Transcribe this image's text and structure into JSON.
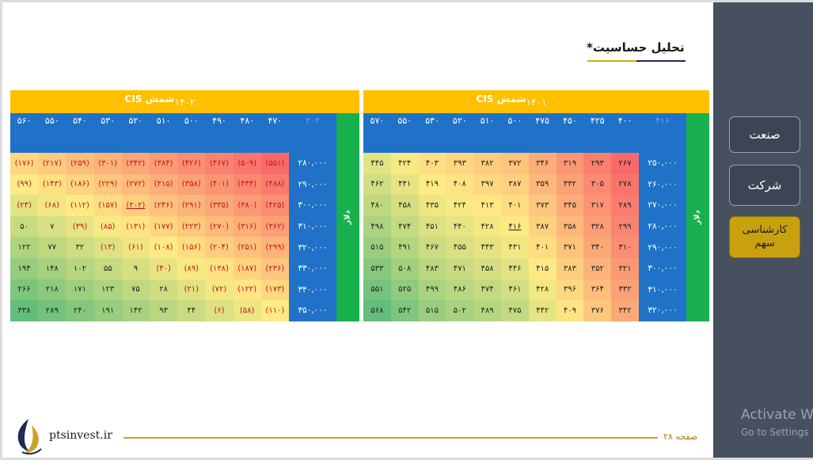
{
  "page": {
    "title": "تحلیل حساسیت*",
    "site": "ptsinvest.ir",
    "page_number": "صفحه ۲۸"
  },
  "nav": {
    "industry": "صنعت",
    "company": "شرکت",
    "analysis_line1": "کارشناسی",
    "analysis_line2": "سهم"
  },
  "watermark": {
    "line1": "Activate W",
    "line2": "Go to Settings"
  },
  "tables": [
    {
      "year": "۱۴۰۲",
      "header": "شمش CIS",
      "side_label": "دلار",
      "corner": "۲۰۲",
      "cols": [
        "۴۷۰",
        "۴۸۰",
        "۴۹۰",
        "۵۰۰",
        "۵۱۰",
        "۵۲۰",
        "۵۳۰",
        "۵۴۰",
        "۵۵۰",
        "۵۶۰"
      ],
      "rows": [
        "۲۸۰,۰۰۰",
        "۲۹۰,۰۰۰",
        "۳۰۰,۰۰۰",
        "۳۱۰,۰۰۰",
        "۳۲۰,۰۰۰",
        "۳۳۰,۰۰۰",
        "۳۴۰,۰۰۰",
        "۳۵۰,۰۰۰"
      ],
      "values": [
        [
          "(۵۵۱)",
          "(۵۰۹)",
          "(۴۶۷)",
          "(۴۲۶)",
          "(۳۸۴)",
          "(۳۴۲)",
          "(۳۰۱)",
          "(۲۵۹)",
          "(۲۱۷)",
          "(۱۷۶)"
        ],
        [
          "(۴۸۸)",
          "(۴۴۴)",
          "(۴۰۱)",
          "(۳۵۸)",
          "(۳۱۵)",
          "(۲۷۲)",
          "(۲۲۹)",
          "(۱۸۶)",
          "(۱۴۳)",
          "(۹۹)"
        ],
        [
          "(۴۲۵)",
          "(۳۸۰)",
          "(۳۳۵)",
          "(۲۹۱)",
          "(۲۴۶)",
          "(۲۰۲)",
          "(۱۵۷)",
          "(۱۱۲)",
          "(۶۸)",
          "(۲۳)"
        ],
        [
          "(۳۶۲)",
          "(۳۱۶)",
          "(۲۷۰)",
          "(۲۲۳)",
          "(۱۷۷)",
          "(۱۳۱)",
          "(۸۵)",
          "(۳۹)",
          "۷",
          "۵۰"
        ],
        [
          "(۲۹۹)",
          "(۲۵۱)",
          "(۲۰۴)",
          "(۱۵۶)",
          "(۱۰۸)",
          "(۶۱)",
          "(۱۳)",
          "۳۲",
          "۷۷",
          "۱۲۲"
        ],
        [
          "(۲۳۶)",
          "(۱۸۷)",
          "(۱۳۸)",
          "(۸۹)",
          "(۴۰)",
          "۹",
          "۵۵",
          "۱۰۲",
          "۱۴۸",
          "۱۹۴"
        ],
        [
          "(۱۷۳)",
          "(۱۲۲)",
          "(۷۲)",
          "(۲۱)",
          "۲۸",
          "۷۵",
          "۱۲۳",
          "۱۷۱",
          "۲۱۸",
          "۲۶۶"
        ],
        [
          "(۱۱۰)",
          "(۵۸)",
          "(۶)",
          "۴۴",
          "۹۳",
          "۱۴۲",
          "۱۹۱",
          "۲۴۰",
          "۲۸۹",
          "۳۳۸"
        ]
      ],
      "highlight": [
        2,
        5
      ]
    },
    {
      "year": "۱۴۰۱",
      "header": "شمش CIS",
      "side_label": "دلار",
      "corner": "۴۱۶",
      "cols": [
        "۴۰۰",
        "۴۲۵",
        "۴۵۰",
        "۴۷۵",
        "۵۰۰",
        "۵۱۰",
        "۵۲۰",
        "۵۳۰",
        "۵۵۰",
        "۵۷۰"
      ],
      "rows": [
        "۲۵۰,۰۰۰",
        "۲۶۰,۰۰۰",
        "۲۷۰,۰۰۰",
        "۲۸۰,۰۰۰",
        "۲۹۰,۰۰۰",
        "۳۰۰,۰۰۰",
        "۳۱۰,۰۰۰",
        "۳۲۰,۰۰۰"
      ],
      "values": [
        [
          "۲۶۷",
          "۲۹۳",
          "۳۱۹",
          "۳۴۶",
          "۳۷۲",
          "۳۸۲",
          "۳۹۳",
          "۴۰۳",
          "۴۲۴",
          "۴۴۵"
        ],
        [
          "۲۷۸",
          "۳۰۵",
          "۳۳۲",
          "۳۵۹",
          "۳۸۷",
          "۳۹۷",
          "۴۰۸",
          "۴۱۹",
          "۴۴۱",
          "۴۶۲"
        ],
        [
          "۲۸۹",
          "۳۱۷",
          "۳۴۵",
          "۳۷۳",
          "۴۰۱",
          "۴۱۳",
          "۴۲۴",
          "۴۳۵",
          "۴۵۸",
          "۴۸۰"
        ],
        [
          "۲۹۹",
          "۳۲۸",
          "۳۵۸",
          "۳۸۷",
          "۴۱۶",
          "۴۲۸",
          "۴۴۰",
          "۴۵۱",
          "۴۷۴",
          "۴۹۸"
        ],
        [
          "۳۱۰",
          "۳۴۰",
          "۳۷۱",
          "۴۰۱",
          "۴۳۱",
          "۴۴۳",
          "۴۵۵",
          "۴۶۷",
          "۴۹۱",
          "۵۱۵"
        ],
        [
          "۳۲۱",
          "۳۵۲",
          "۳۸۳",
          "۴۱۵",
          "۴۴۶",
          "۴۵۸",
          "۴۷۱",
          "۴۸۳",
          "۵۰۸",
          "۵۳۳"
        ],
        [
          "۳۳۲",
          "۳۶۴",
          "۳۹۶",
          "۴۲۸",
          "۴۶۱",
          "۴۷۴",
          "۴۸۶",
          "۴۹۹",
          "۵۲۵",
          "۵۵۱"
        ],
        [
          "۳۴۲",
          "۳۷۶",
          "۴۰۹",
          "۴۴۲",
          "۴۷۵",
          "۴۸۹",
          "۵۰۲",
          "۵۱۵",
          "۵۴۲",
          "۵۶۸"
        ]
      ],
      "highlight": [
        3,
        4
      ]
    }
  ],
  "colors": {
    "year_bar": "#ffc000",
    "header_blue": "#1f72c7",
    "side_green": "#18b04d",
    "heat_low": "#f8696b",
    "heat_mid": "#ffeb84",
    "heat_high": "#63be7b"
  }
}
